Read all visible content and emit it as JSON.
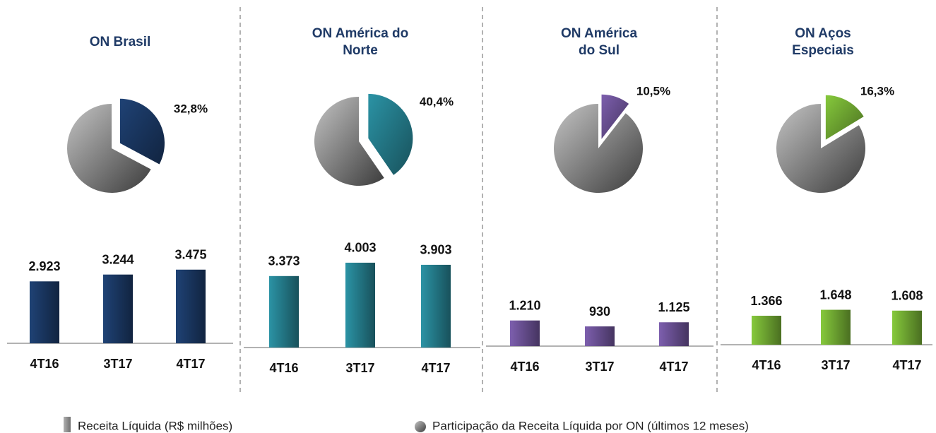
{
  "chart_data": [
    {
      "type": "pie",
      "title": "ON Brasil",
      "values": [
        32.8
      ],
      "value_labels": [
        "32,8%"
      ],
      "color": "#1f4275"
    },
    {
      "type": "bar",
      "categories": [
        "4T16",
        "3T17",
        "4T17"
      ],
      "values": [
        2923,
        3244,
        3475
      ],
      "value_labels": [
        "2.923",
        "3.244",
        "3.475"
      ],
      "color": "#1f4275"
    },
    {
      "type": "pie",
      "title": "ON América do Norte",
      "values": [
        40.4
      ],
      "value_labels": [
        "40,4%"
      ],
      "color": "#2b93a5"
    },
    {
      "type": "bar",
      "categories": [
        "4T16",
        "3T17",
        "4T17"
      ],
      "values": [
        3373,
        4003,
        3903
      ],
      "value_labels": [
        "3.373",
        "4.003",
        "3.903"
      ],
      "color": "#2b93a5"
    },
    {
      "type": "pie",
      "title": "ON América do Sul",
      "values": [
        10.5
      ],
      "value_labels": [
        "10,5%"
      ],
      "color": "#7d5fae"
    },
    {
      "type": "bar",
      "categories": [
        "4T16",
        "3T17",
        "4T17"
      ],
      "values": [
        1210,
        930,
        1125
      ],
      "value_labels": [
        "1.210",
        "930",
        "1.125"
      ],
      "color": "#7d5fae"
    },
    {
      "type": "pie",
      "title": "ON Aços Especiais",
      "values": [
        16.3
      ],
      "value_labels": [
        "16,3%"
      ],
      "color": "#86c93c"
    },
    {
      "type": "bar",
      "categories": [
        "4T16",
        "3T17",
        "4T17"
      ],
      "values": [
        1366,
        1648,
        1608
      ],
      "value_labels": [
        "1.366",
        "1.648",
        "1.608"
      ],
      "color": "#86c93c"
    }
  ],
  "legend": [
    "Receita Líquida (R$ milhões)",
    "Participação da Receita Líquida por ON (últimos 12 meses)"
  ]
}
